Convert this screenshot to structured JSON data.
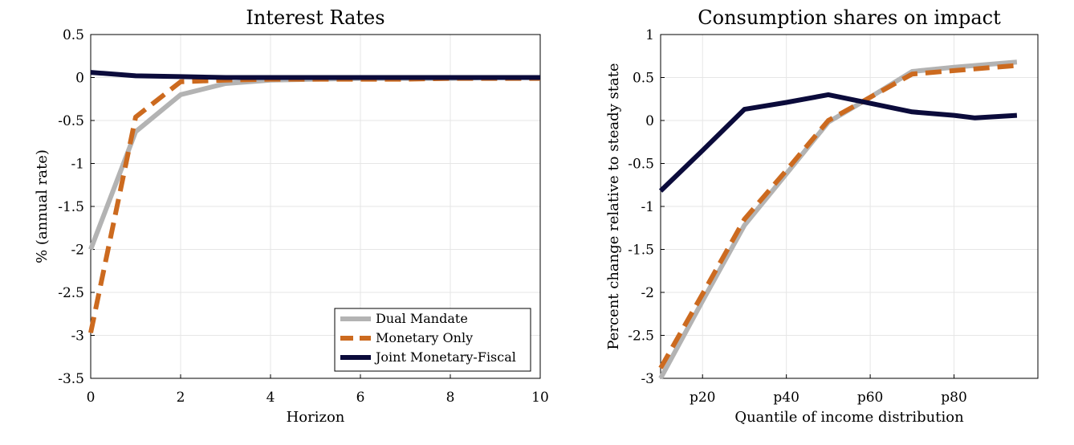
{
  "chart_data": [
    {
      "type": "line",
      "title": "Interest Rates",
      "xlabel": "Horizon",
      "ylabel": "% (annual rate)",
      "xlim": [
        0,
        10
      ],
      "ylim": [
        -3.5,
        0.5
      ],
      "xticks": [
        "0",
        "2",
        "4",
        "6",
        "8",
        "10"
      ],
      "yticks": [
        "0.5",
        "0",
        "-0.5",
        "-1",
        "-1.5",
        "-2",
        "-2.5",
        "-3",
        "-3.5"
      ],
      "grid": true,
      "legend": "bottom-right",
      "series": [
        {
          "name": "Dual Mandate",
          "color": "#b3b3b3",
          "style": "solid",
          "x": [
            0,
            1,
            2,
            3,
            4,
            5,
            6,
            7,
            8,
            9,
            10
          ],
          "y": [
            -2.0,
            -0.63,
            -0.2,
            -0.07,
            -0.03,
            -0.02,
            -0.01,
            -0.01,
            -0.01,
            0.0,
            0.0
          ]
        },
        {
          "name": "Monetary Only",
          "color": "#cc6a1f",
          "style": "dashed",
          "x": [
            0,
            1,
            2,
            3,
            4,
            5,
            6,
            7,
            8,
            9,
            10
          ],
          "y": [
            -2.97,
            -0.46,
            -0.05,
            -0.03,
            -0.02,
            -0.02,
            -0.02,
            -0.02,
            -0.01,
            -0.01,
            -0.01
          ]
        },
        {
          "name": "Joint Monetary-Fiscal",
          "color": "#0b0b3b",
          "style": "solid",
          "x": [
            0,
            1,
            2,
            3,
            4,
            5,
            6,
            7,
            8,
            9,
            10
          ],
          "y": [
            0.06,
            0.02,
            0.01,
            0.0,
            0.0,
            0.0,
            0.0,
            0.0,
            0.0,
            0.0,
            0.0
          ]
        }
      ]
    },
    {
      "type": "line",
      "title": "Consumption shares on impact",
      "xlabel": "Quantile of income distribution",
      "ylabel": "Percent change relative to steady state",
      "xlim": [
        10,
        100
      ],
      "ylim": [
        -3,
        1
      ],
      "xticks": [
        "p20",
        "p40",
        "p60",
        "p80"
      ],
      "yticks": [
        "1",
        "0.5",
        "0",
        "-0.5",
        "-1",
        "-1.5",
        "-2",
        "-2.5",
        "-3"
      ],
      "grid": true,
      "series": [
        {
          "name": "Dual Mandate",
          "color": "#b3b3b3",
          "style": "solid",
          "x": [
            10,
            20,
            30,
            40,
            50,
            60,
            70,
            80,
            95
          ],
          "y": [
            -3.0,
            -2.1,
            -1.22,
            -0.62,
            -0.02,
            0.27,
            0.57,
            0.62,
            0.68
          ]
        },
        {
          "name": "Monetary Only",
          "color": "#cc6a1f",
          "style": "dashed",
          "x": [
            10,
            20,
            30,
            40,
            50,
            60,
            70,
            80,
            95
          ],
          "y": [
            -2.88,
            -2.02,
            -1.15,
            -0.58,
            0.0,
            0.27,
            0.54,
            0.58,
            0.64
          ]
        },
        {
          "name": "Joint Monetary-Fiscal",
          "color": "#0b0b3b",
          "style": "solid",
          "x": [
            10,
            20,
            30,
            40,
            50,
            60,
            70,
            80,
            85,
            95
          ],
          "y": [
            -0.82,
            -0.35,
            0.13,
            0.21,
            0.3,
            0.2,
            0.1,
            0.06,
            0.03,
            0.06
          ]
        }
      ]
    }
  ]
}
